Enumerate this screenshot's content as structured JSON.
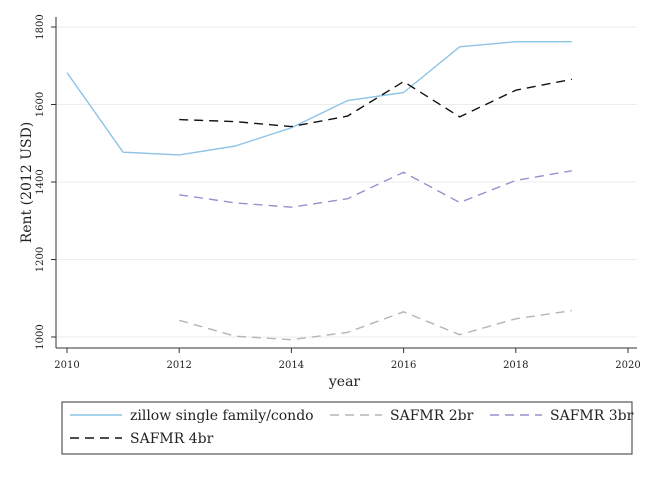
{
  "chart_data": {
    "type": "line",
    "title": "",
    "xlabel": "year",
    "ylabel": "Rent (2012 USD)",
    "xlim": [
      2010,
      2020
    ],
    "ylim": [
      1000,
      1800
    ],
    "xticks": [
      2010,
      2012,
      2014,
      2016,
      2018,
      2020
    ],
    "yticks": [
      1000,
      1200,
      1400,
      1600,
      1800
    ],
    "grid": true,
    "legend_position": "bottom",
    "series": [
      {
        "name": "zillow single family/condo",
        "color": "#8fc4e6",
        "dash": "solid",
        "x": [
          2010,
          2011,
          2012,
          2013,
          2014,
          2015,
          2016,
          2017,
          2018,
          2019
        ],
        "y": [
          1682,
          1477,
          1470,
          1493,
          1540,
          1610,
          1631,
          1749,
          1762,
          1762
        ]
      },
      {
        "name": "SAFMR 2br",
        "color": "#b5b5b5",
        "dash": "dashed",
        "x": [
          2012,
          2013,
          2014,
          2015,
          2016,
          2017,
          2018,
          2019
        ],
        "y": [
          1043,
          1002,
          993,
          1012,
          1065,
          1006,
          1047,
          1068
        ]
      },
      {
        "name": "SAFMR 3br",
        "color": "#9c8fcf",
        "dash": "dashed",
        "x": [
          2012,
          2013,
          2014,
          2015,
          2016,
          2017,
          2018,
          2019
        ],
        "y": [
          1367,
          1346,
          1335,
          1357,
          1425,
          1347,
          1404,
          1429
        ]
      },
      {
        "name": "SAFMR 4br",
        "color": "#111111",
        "dash": "dashed",
        "x": [
          2012,
          2013,
          2014,
          2015,
          2016,
          2017,
          2018,
          2019
        ],
        "y": [
          1561,
          1556,
          1543,
          1570,
          1659,
          1568,
          1637,
          1665
        ]
      }
    ]
  }
}
